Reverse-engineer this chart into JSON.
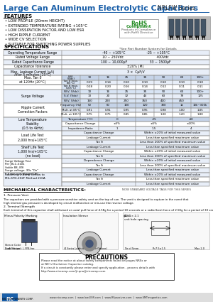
{
  "title": "Large Can Aluminum Electrolytic Capacitors",
  "series": "NRLFW Series",
  "features": [
    "LOW PROFILE (20mm HEIGHT)",
    "EXTENDED TEMPERATURE RATING +105°C",
    "LOW DISSIPATION FACTOR AND LOW ESR",
    "HIGH RIPPLE CURRENT",
    "WIDE CV SELECTION",
    "SUITABLE FOR SWITCHING POWER SUPPLIES"
  ],
  "see_pn": "*See Part Number System for Details",
  "bg_color": "#ffffff",
  "title_color": "#1a5fa8",
  "title_underline": "#1a5fa8",
  "table_alt1": "#e8eef8",
  "table_alt2": "#ffffff",
  "table_hdr": "#c5d3e8",
  "border_color": "#aaaaaa",
  "footer_bg": "#e0e0e0"
}
